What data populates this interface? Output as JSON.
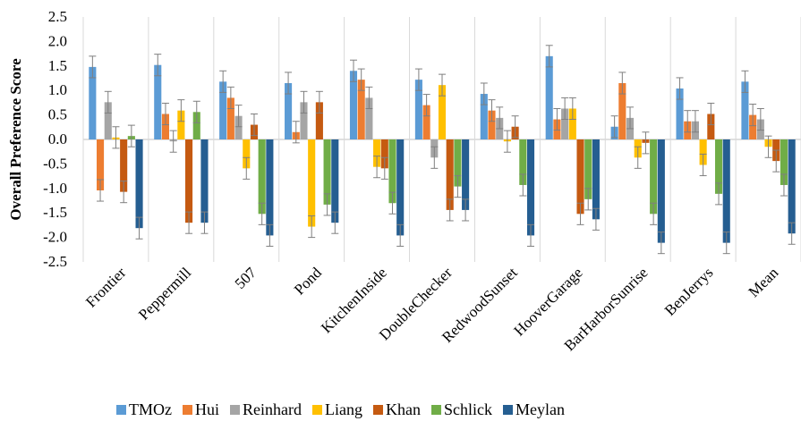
{
  "chart_data": {
    "type": "bar",
    "ylabel": "Overall Preference Score",
    "ylim": [
      -2.5,
      2.5
    ],
    "yticks": [
      "2.5",
      "2.0",
      "1.5",
      "1.0",
      "0.5",
      "0.0",
      "-0.5",
      "-1.0",
      "-1.5",
      "-2.0",
      "-2.5"
    ],
    "categories": [
      "Frontier",
      "Peppermill",
      "507",
      "Pond",
      "KitchenInside",
      "DoubleChecker",
      "RedwoodSunset",
      "HooverGarage",
      "BarHarborSunrise",
      "BenJerrys",
      "Mean"
    ],
    "legend_position": "bottom",
    "series": [
      {
        "name": "TMOz",
        "color": "#5b9bd5",
        "values": [
          1.48,
          1.52,
          1.18,
          1.15,
          1.4,
          1.22,
          0.93,
          1.7,
          0.26,
          1.04,
          1.18
        ],
        "errors": [
          0.22,
          0.22,
          0.22,
          0.22,
          0.22,
          0.22,
          0.22,
          0.22,
          0.22,
          0.22,
          0.22
        ]
      },
      {
        "name": "Hui",
        "color": "#ed7d31",
        "values": [
          -1.04,
          0.52,
          0.85,
          0.15,
          1.22,
          0.7,
          0.59,
          0.41,
          1.15,
          0.37,
          0.5
        ],
        "errors": [
          0.22,
          0.22,
          0.22,
          0.22,
          0.22,
          0.22,
          0.22,
          0.22,
          0.22,
          0.22,
          0.22
        ]
      },
      {
        "name": "Reinhard",
        "color": "#a5a5a5",
        "values": [
          0.76,
          -0.04,
          0.48,
          0.76,
          0.85,
          -0.37,
          0.44,
          0.63,
          0.44,
          0.37,
          0.41
        ],
        "errors": [
          0.22,
          0.22,
          0.22,
          0.22,
          0.22,
          0.22,
          0.22,
          0.22,
          0.22,
          0.22,
          0.22
        ]
      },
      {
        "name": "Liang",
        "color": "#ffc000",
        "values": [
          0.04,
          0.59,
          -0.59,
          -1.78,
          -0.56,
          1.11,
          -0.04,
          0.63,
          -0.37,
          -0.52,
          -0.15
        ],
        "errors": [
          0.22,
          0.22,
          0.22,
          0.22,
          0.22,
          0.22,
          0.22,
          0.22,
          0.22,
          0.22,
          0.22
        ]
      },
      {
        "name": "Khan",
        "color": "#c55a11",
        "values": [
          -1.07,
          -1.7,
          0.3,
          0.76,
          -0.59,
          -1.44,
          0.26,
          -1.52,
          -0.07,
          0.52,
          -0.44
        ],
        "errors": [
          0.22,
          0.22,
          0.22,
          0.22,
          0.22,
          0.22,
          0.22,
          0.22,
          0.22,
          0.22,
          0.22
        ]
      },
      {
        "name": "Schlick",
        "color": "#70ad47",
        "values": [
          0.07,
          0.56,
          -1.52,
          -1.33,
          -1.3,
          -0.96,
          -0.93,
          -1.22,
          -1.52,
          -1.11,
          -0.93
        ],
        "errors": [
          0.22,
          0.22,
          0.22,
          0.22,
          0.22,
          0.22,
          0.22,
          0.22,
          0.22,
          0.22,
          0.22
        ]
      },
      {
        "name": "Meylan",
        "color": "#255e91",
        "values": [
          -1.81,
          -1.7,
          -1.96,
          -1.7,
          -1.96,
          -1.44,
          -1.96,
          -1.63,
          -2.11,
          -2.11,
          -1.92
        ],
        "errors": [
          0.22,
          0.22,
          0.22,
          0.22,
          0.22,
          0.22,
          0.22,
          0.22,
          0.22,
          0.22,
          0.22
        ]
      }
    ]
  }
}
